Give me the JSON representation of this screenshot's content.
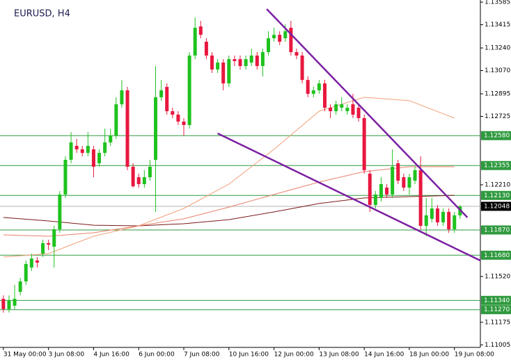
{
  "chart_data": {
    "type": "candlestick",
    "title": "EURUSD, H4",
    "xlim": [
      -0.6,
      84.6
    ],
    "ylim": [
      1.10986,
      1.13601
    ],
    "xticks": [
      {
        "value": 0,
        "label": "31 May 00:00"
      },
      {
        "value": 8,
        "label": "3 Jun 08:00"
      },
      {
        "value": 16,
        "label": "4 Jun 16:00"
      },
      {
        "value": 24,
        "label": "6 Jun 00:00"
      },
      {
        "value": 32,
        "label": "7 Jun 08:00"
      },
      {
        "value": 40,
        "label": "10 Jun 16:00"
      },
      {
        "value": 48,
        "label": "12 Jun 00:00"
      },
      {
        "value": 56,
        "label": "13 Jun 08:00"
      },
      {
        "value": 64,
        "label": "14 Jun 16:00"
      },
      {
        "value": 72,
        "label": "18 Jun 00:00"
      },
      {
        "value": 80,
        "label": "19 Jun 08:00"
      }
    ],
    "yticks": [
      1.13585,
      {
        "value": 1.13415,
        "label": "1.13415"
      },
      {
        "value": 1.1324,
        "label": "1.13240"
      },
      {
        "value": 1.1307,
        "label": "1.13070"
      },
      1.12895,
      1.12725,
      {
        "value": 1.1221,
        "label": "1.12210"
      },
      {
        "value": 1.1152,
        "label": "1.11520"
      },
      1.11175,
      1.11005
    ],
    "up_color": "#1fc21f",
    "down_color": "#e8173f",
    "open": [
      1.11352,
      1.11274,
      1.113,
      1.11404,
      1.11483,
      1.11587,
      1.1164,
      1.11692,
      1.11771,
      1.11744,
      1.11875,
      1.12137,
      1.12398,
      1.12503,
      1.12477,
      1.1245,
      1.12477,
      1.12372,
      1.1245,
      1.12529,
      1.12581,
      1.12816,
      1.12921,
      1.12346,
      1.12267,
      1.12215,
      1.12267,
      1.12398,
      1.12869,
      1.12947,
      1.12764,
      1.12738,
      1.12686,
      1.1266,
      1.13183,
      1.13402,
      1.13287,
      1.13183,
      1.13078,
      1.1313,
      1.12973,
      1.13156,
      1.13156,
      1.13104,
      1.1313,
      1.13183,
      1.13104,
      1.13209,
      1.13313,
      1.13339,
      1.13313,
      1.13392,
      1.13209,
      1.13183,
      1.12999,
      1.12895,
      1.12921,
      1.12973,
      1.1279,
      1.12764,
      1.1279,
      1.12764,
      1.12816,
      1.1279,
      1.12712,
      1.12294,
      1.12058,
      1.12111,
      1.12189,
      1.12137,
      1.12372,
      1.12267,
      1.12189,
      1.12241,
      1.1232,
      1.11901,
      1.11954,
      1.12032,
      1.11927,
      1.12006,
      1.11875,
      1.1198
    ],
    "high": [
      1.11378,
      1.11378,
      1.11457,
      1.11509,
      1.1164,
      1.11692,
      1.11666,
      1.11797,
      1.11797,
      1.11901,
      1.12163,
      1.12424,
      1.12607,
      1.12555,
      1.12503,
      1.12607,
      1.12503,
      1.12477,
      1.12633,
      1.12633,
      1.12869,
      1.12999,
      1.12947,
      1.12372,
      1.12294,
      1.1232,
      1.12398,
      1.13104,
      1.12999,
      1.12973,
      1.1279,
      1.12764,
      1.12712,
      1.13209,
      1.1347,
      1.13444,
      1.13313,
      1.13209,
      1.13156,
      1.13156,
      1.13183,
      1.13183,
      1.13183,
      1.13183,
      1.13235,
      1.13209,
      1.13235,
      1.13366,
      1.13392,
      1.13366,
      1.13418,
      1.13444,
      1.13235,
      1.13209,
      1.13026,
      1.12947,
      1.12999,
      1.12999,
      1.12816,
      1.12843,
      1.12869,
      1.12816,
      1.12895,
      1.12816,
      1.12738,
      1.1232,
      1.12163,
      1.12267,
      1.12215,
      1.12477,
      1.12398,
      1.12294,
      1.12294,
      1.12346,
      1.12424,
      1.12111,
      1.12111,
      1.12058,
      1.12032,
      1.12032,
      1.12006,
      1.12058
    ],
    "low": [
      1.11248,
      1.11248,
      1.11274,
      1.11378,
      1.11457,
      1.11561,
      1.11587,
      1.11666,
      1.11718,
      1.11587,
      1.11849,
      1.12111,
      1.12372,
      1.1245,
      1.12424,
      1.12424,
      1.12267,
      1.12346,
      1.12424,
      1.12503,
      1.12555,
      1.1279,
      1.1232,
      1.12189,
      1.12189,
      1.12189,
      1.12241,
      1.12006,
      1.12843,
      1.12738,
      1.12712,
      1.1266,
      1.12581,
      1.12633,
      1.13156,
      1.13313,
      1.13156,
      1.13052,
      1.13052,
      1.12921,
      1.12947,
      1.13104,
      1.13078,
      1.13078,
      1.13104,
      1.13078,
      1.13026,
      1.13183,
      1.13287,
      1.13261,
      1.13287,
      1.13183,
      1.13156,
      1.12973,
      1.12869,
      1.12869,
      1.12895,
      1.12764,
      1.12712,
      1.12738,
      1.12764,
      1.12738,
      1.12712,
      1.12686,
      1.12294,
      1.12006,
      1.12032,
      1.12084,
      1.12111,
      1.12111,
      1.12215,
      1.12163,
      1.12137,
      1.12215,
      1.11875,
      1.11823,
      1.11927,
      1.11901,
      1.11901,
      1.11849,
      1.11849,
      1.11954
    ],
    "close": [
      1.11274,
      1.11342,
      1.11352,
      1.11483,
      1.11614,
      1.11655,
      1.11624,
      1.11771,
      1.1176,
      1.11875,
      1.12137,
      1.12398,
      1.12529,
      1.12477,
      1.1245,
      1.12503,
      1.12346,
      1.1245,
      1.12529,
      1.12581,
      1.12816,
      1.12921,
      1.12346,
      1.12199,
      1.12215,
      1.12267,
      1.12346,
      1.12869,
      1.12921,
      1.12764,
      1.12738,
      1.12686,
      1.1266,
      1.13183,
      1.13392,
      1.13339,
      1.13183,
      1.13078,
      1.1313,
      1.12973,
      1.13156,
      1.13141,
      1.13104,
      1.13156,
      1.13183,
      1.13104,
      1.13209,
      1.13313,
      1.13339,
      1.13287,
      1.13366,
      1.13209,
      1.13183,
      1.12999,
      1.12895,
      1.12921,
      1.12973,
      1.1279,
      1.12764,
      1.12816,
      1.12816,
      1.1279,
      1.12738,
      1.12712,
      1.1232,
      1.12058,
      1.12137,
      1.12215,
      1.12137,
      1.12346,
      1.12241,
      1.12189,
      1.12267,
      1.1232,
      1.11901,
      1.1198,
      1.12032,
      1.11927,
      1.12006,
      1.11875,
      1.1198,
      1.12048
    ],
    "moving_averages": [
      {
        "color": "#f2a07a",
        "x": [
          0,
          8,
          16,
          24,
          32,
          40,
          48,
          56,
          64,
          72,
          80
        ],
        "values": [
          1.11666,
          1.11692,
          1.11823,
          1.11901,
          1.12032,
          1.12215,
          1.12477,
          1.12764,
          1.12869,
          1.12843,
          1.12712
        ]
      },
      {
        "color": "#7a1818",
        "x": [
          0,
          8,
          16,
          24,
          32,
          40,
          48,
          56,
          64,
          72,
          80
        ],
        "values": [
          1.11964,
          1.11938,
          1.11906,
          1.11901,
          1.11917,
          1.11948,
          1.12006,
          1.12069,
          1.12111,
          1.12121,
          1.12131
        ]
      },
      {
        "color": "#e8806a",
        "x": [
          0,
          8,
          16,
          24,
          32,
          40,
          48,
          56,
          64,
          72,
          80
        ],
        "values": [
          1.11833,
          1.11823,
          1.11849,
          1.11901,
          1.11954,
          1.12042,
          1.12137,
          1.12231,
          1.12309,
          1.12346,
          1.12346
        ]
      }
    ],
    "trendlines": [
      {
        "color": "#7b1fa2",
        "x": [
          46.7,
          82.3
        ],
        "values": [
          1.13533,
          1.11964
        ]
      },
      {
        "color": "#7b1fa2",
        "x": [
          38.0,
          84.6
        ],
        "values": [
          1.12597,
          1.1164
        ]
      }
    ],
    "level_color": "#2f9a3f",
    "levels": [
      {
        "value": 1.1258,
        "label": "1.12580"
      },
      {
        "value": 1.12355,
        "label": "1.12355"
      },
      {
        "value": 1.1213,
        "label": "1.12130"
      },
      {
        "value": 1.1187,
        "label": "1.11870"
      },
      {
        "value": 1.1168,
        "label": "1.11680"
      },
      {
        "value": 1.1134,
        "label": "1.11340"
      },
      {
        "value": 1.1127,
        "label": "1.11270"
      }
    ],
    "current_price": 1.12048
  }
}
